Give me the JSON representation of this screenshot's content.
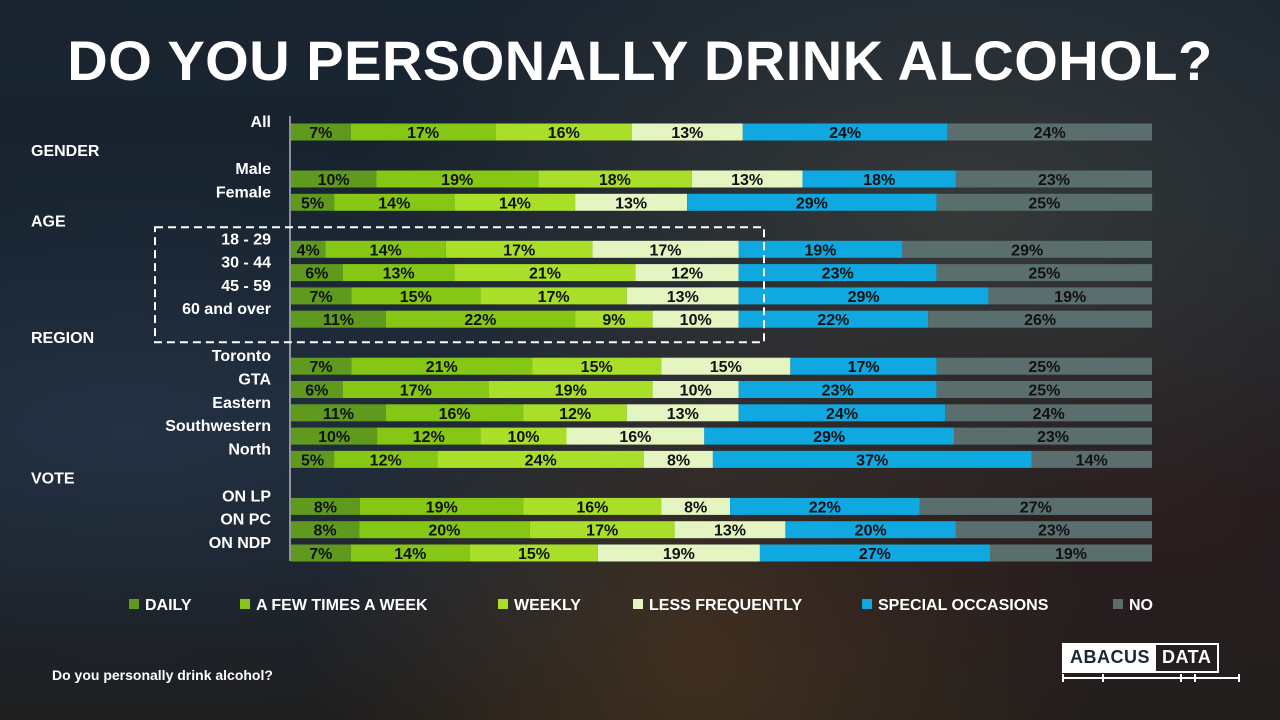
{
  "title": "DO YOU PERSONALLY DRINK ALCOHOL?",
  "footnote": "Do you personally drink alcohol?",
  "logo": {
    "left": "ABACUS",
    "right": "DATA"
  },
  "colors": {
    "DAILY": "#5f9a1e",
    "A FEW TIMES A WEEK": "#86c716",
    "WEEKLY": "#a9df28",
    "LESS FREQUENTLY": "#e4f5c1",
    "SPECIAL OCCASIONS": "#0fa8e0",
    "NO": "#5a6e6e"
  },
  "chart_data": {
    "type": "bar",
    "orientation": "horizontal",
    "stacked": true,
    "title": "DO YOU PERSONALLY DRINK ALCOHOL?",
    "xlim": [
      0,
      100
    ],
    "legend_position": "bottom",
    "series_names": [
      "DAILY",
      "A FEW TIMES A WEEK",
      "WEEKLY",
      "LESS FREQUENTLY",
      "SPECIAL OCCASIONS",
      "NO"
    ],
    "sections": [
      {
        "label": "",
        "rows": [
          {
            "label": "All",
            "values": [
              7,
              17,
              16,
              13,
              24,
              24
            ]
          }
        ]
      },
      {
        "label": "GENDER",
        "rows": [
          {
            "label": "Male",
            "values": [
              10,
              19,
              18,
              13,
              18,
              23
            ]
          },
          {
            "label": "Female",
            "values": [
              5,
              14,
              14,
              13,
              29,
              25
            ]
          }
        ]
      },
      {
        "label": "AGE",
        "highlighted": true,
        "rows": [
          {
            "label": "18 - 29",
            "values": [
              4,
              14,
              17,
              17,
              19,
              29
            ]
          },
          {
            "label": "30 - 44",
            "values": [
              6,
              13,
              21,
              12,
              23,
              25
            ]
          },
          {
            "label": "45 - 59",
            "values": [
              7,
              15,
              17,
              13,
              29,
              19
            ]
          },
          {
            "label": "60 and over",
            "values": [
              11,
              22,
              9,
              10,
              22,
              26
            ]
          }
        ]
      },
      {
        "label": "REGION",
        "rows": [
          {
            "label": "Toronto",
            "values": [
              7,
              21,
              15,
              15,
              17,
              25
            ]
          },
          {
            "label": "GTA",
            "values": [
              6,
              17,
              19,
              10,
              23,
              25
            ]
          },
          {
            "label": "Eastern",
            "values": [
              11,
              16,
              12,
              13,
              24,
              24
            ]
          },
          {
            "label": "Southwestern",
            "values": [
              10,
              12,
              10,
              16,
              29,
              23
            ]
          },
          {
            "label": "North",
            "values": [
              5,
              12,
              24,
              8,
              37,
              14
            ]
          }
        ]
      },
      {
        "label": "VOTE",
        "rows": [
          {
            "label": "ON LP",
            "values": [
              8,
              19,
              16,
              8,
              22,
              27
            ]
          },
          {
            "label": "ON PC",
            "values": [
              8,
              20,
              17,
              13,
              20,
              23
            ]
          },
          {
            "label": "ON NDP",
            "values": [
              7,
              14,
              15,
              19,
              27,
              19
            ]
          }
        ]
      }
    ]
  }
}
